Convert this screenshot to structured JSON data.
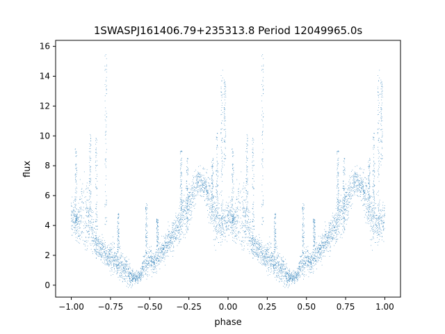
{
  "chart_data": {
    "type": "scatter",
    "title": "1SWASPJ161406.79+235313.8 Period 12049965.0s",
    "xlabel": "phase",
    "ylabel": "flux",
    "xlim": [
      -1.1,
      1.1
    ],
    "ylim": [
      -0.8,
      16.4
    ],
    "xticks": [
      -1.0,
      -0.75,
      -0.5,
      -0.25,
      0.0,
      0.25,
      0.5,
      0.75,
      1.0
    ],
    "xtick_labels": [
      "−1.00",
      "−0.75",
      "−0.50",
      "−0.25",
      "0.00",
      "0.25",
      "0.50",
      "0.75",
      "1.00"
    ],
    "yticks": [
      0,
      2,
      4,
      6,
      8,
      10,
      12,
      14,
      16
    ],
    "ytick_labels": [
      "0",
      "2",
      "4",
      "6",
      "8",
      "10",
      "12",
      "14",
      "16"
    ],
    "grid": false,
    "marker_color": "#1f77b4",
    "phase_folded": true,
    "series": [
      {
        "phase": [
          0.0,
          0.02,
          0.04,
          0.05,
          0.06,
          0.08,
          0.1,
          0.12,
          0.14,
          0.16,
          0.18,
          0.2,
          0.22,
          0.24,
          0.26,
          0.28,
          0.3,
          0.32,
          0.34,
          0.36,
          0.38,
          0.4,
          0.42,
          0.44,
          0.46,
          0.48,
          0.5,
          0.52,
          0.54,
          0.56,
          0.58,
          0.6,
          0.62,
          0.64,
          0.66,
          0.68,
          0.7,
          0.72,
          0.74,
          0.76,
          0.78,
          0.8,
          0.82,
          0.84,
          0.86,
          0.88,
          0.9,
          0.92,
          0.94,
          0.96,
          0.98
        ],
        "flux": [
          4.6,
          4.4,
          4.2,
          4.1,
          4.8,
          5.0,
          4.6,
          4.2,
          3.4,
          2.6,
          2.5,
          2.3,
          2.1,
          1.9,
          1.8,
          1.7,
          1.5,
          1.2,
          1.0,
          0.9,
          0.6,
          0.5,
          0.5,
          0.6,
          1.2,
          1.6,
          1.8,
          1.5,
          1.7,
          2.0,
          2.3,
          2.6,
          2.9,
          3.2,
          3.5,
          3.8,
          4.3,
          4.8,
          5.3,
          5.8,
          6.3,
          6.7,
          6.9,
          6.8,
          6.5,
          5.8,
          4.9,
          4.4,
          4.3,
          4.2,
          4.1
        ],
        "spread": [
          1.0,
          1.1,
          0.8,
          1.6,
          2.0,
          2.5,
          2.2,
          1.6,
          1.1,
          0.8,
          0.7,
          0.7,
          0.8,
          0.8,
          0.8,
          0.9,
          0.9,
          0.9,
          0.8,
          0.7,
          0.6,
          0.4,
          0.3,
          0.4,
          0.7,
          0.8,
          0.8,
          0.7,
          0.6,
          0.7,
          0.8,
          0.8,
          0.9,
          0.9,
          1.0,
          1.1,
          1.2,
          1.2,
          1.2,
          1.1,
          1.1,
          0.9,
          0.8,
          0.8,
          1.0,
          1.4,
          1.6,
          1.5,
          1.3,
          1.2,
          1.1
        ]
      }
    ],
    "flares": [
      {
        "phase": 0.03,
        "flux_low": 4.0,
        "flux_high": 9.2
      },
      {
        "phase": 0.12,
        "flux_low": 5.0,
        "flux_high": 10.1
      },
      {
        "phase": 0.16,
        "flux_low": 3.0,
        "flux_high": 10.0
      },
      {
        "phase": 0.22,
        "flux_low": 4.0,
        "flux_high": 15.6
      },
      {
        "phase": 0.3,
        "flux_low": 2.2,
        "flux_high": 4.8
      },
      {
        "phase": 0.48,
        "flux_low": 2.0,
        "flux_high": 5.5
      },
      {
        "phase": 0.55,
        "flux_low": 2.5,
        "flux_high": 4.5
      },
      {
        "phase": 0.7,
        "flux_low": 5.0,
        "flux_high": 9.0
      },
      {
        "phase": 0.74,
        "flux_low": 3.5,
        "flux_high": 8.6
      },
      {
        "phase": 0.9,
        "flux_low": 5.0,
        "flux_high": 8.5
      },
      {
        "phase": 0.93,
        "flux_low": 4.5,
        "flux_high": 10.2
      },
      {
        "phase": 0.96,
        "flux_low": 3.0,
        "flux_high": 14.4
      },
      {
        "phase": 0.98,
        "flux_low": 8.0,
        "flux_high": 13.8
      }
    ]
  }
}
